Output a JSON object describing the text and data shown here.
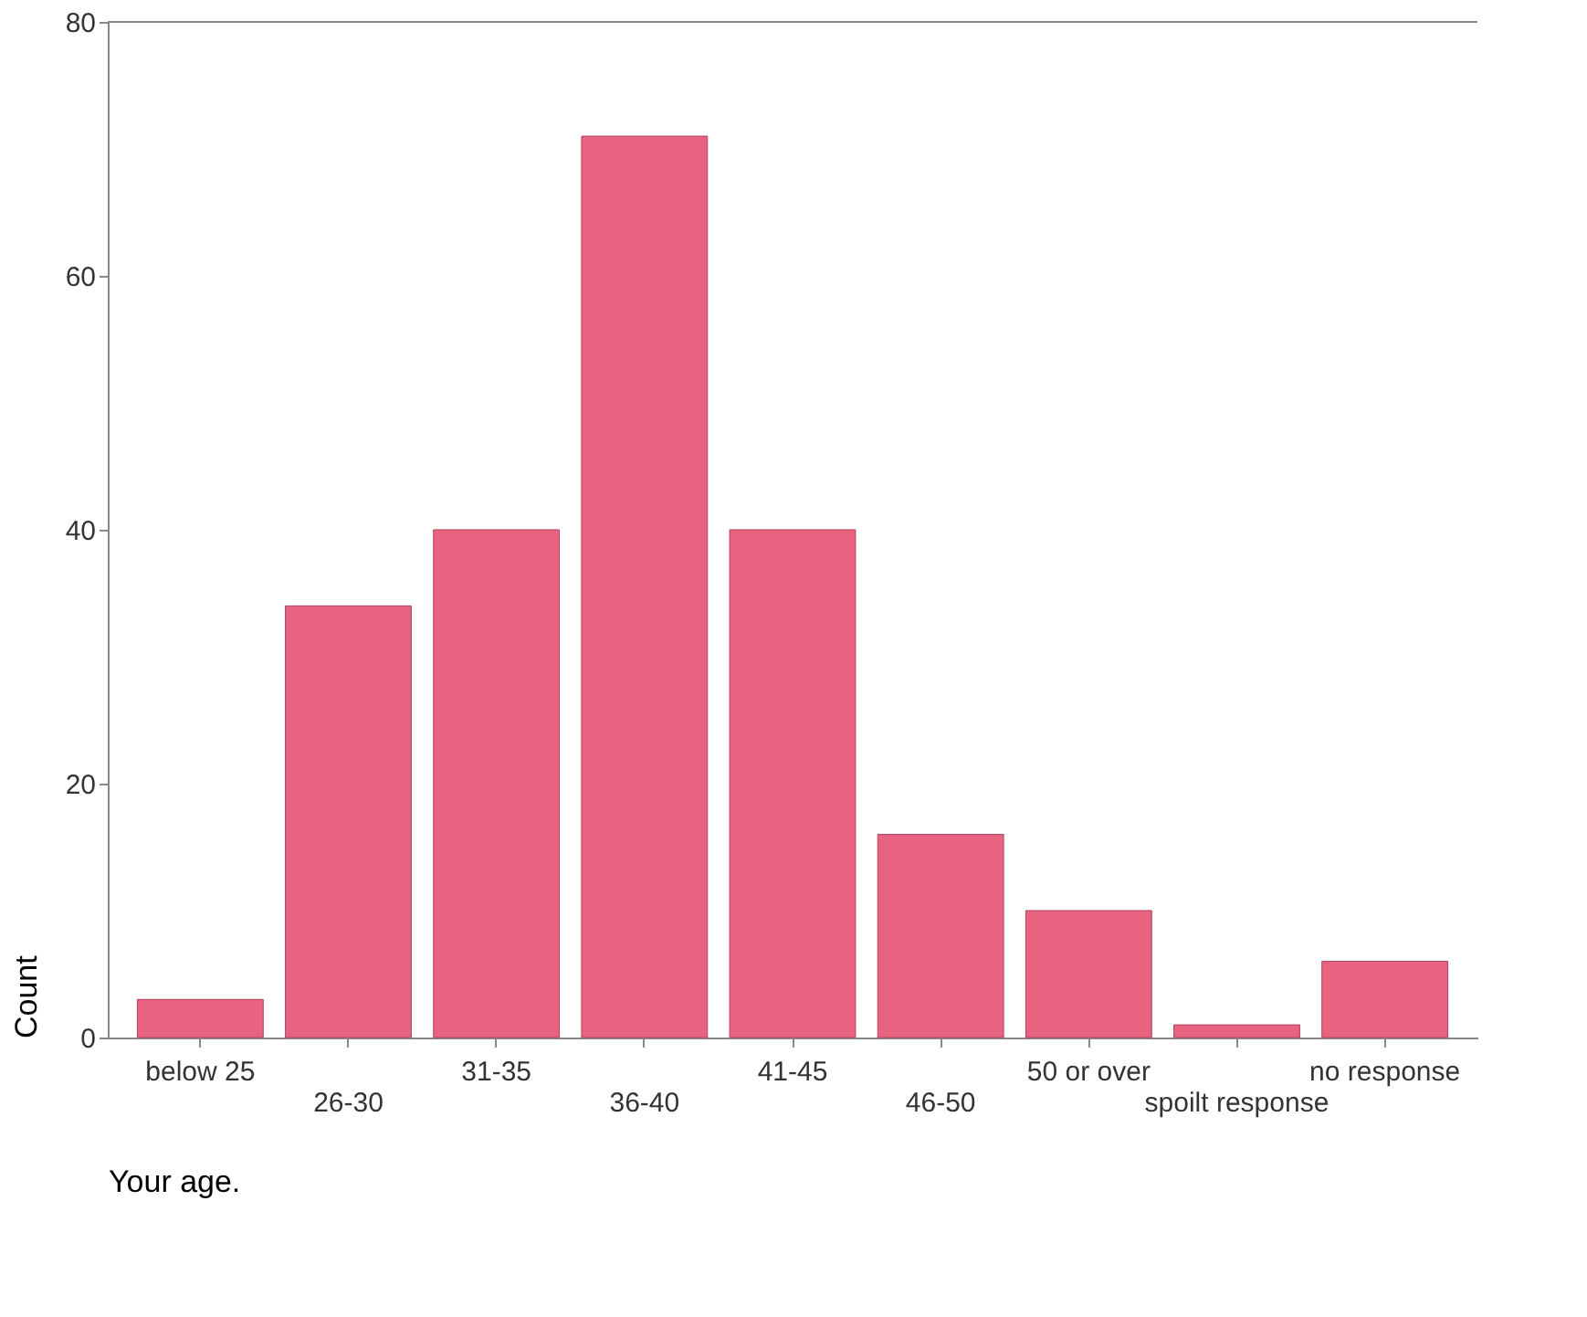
{
  "chart_data": {
    "type": "bar",
    "xlabel": "Your age.",
    "ylabel": "Count",
    "categories": [
      "below 25",
      "26-30",
      "31-35",
      "36-40",
      "41-45",
      "46-50",
      "50 or over",
      "spoilt response",
      "no response"
    ],
    "values": [
      3,
      34,
      40,
      71,
      40,
      16,
      10,
      1,
      6
    ],
    "color": "#e8637f",
    "ylim": [
      0,
      80
    ],
    "yticks": [
      0,
      20,
      40,
      60,
      80
    ],
    "grid": false
  }
}
